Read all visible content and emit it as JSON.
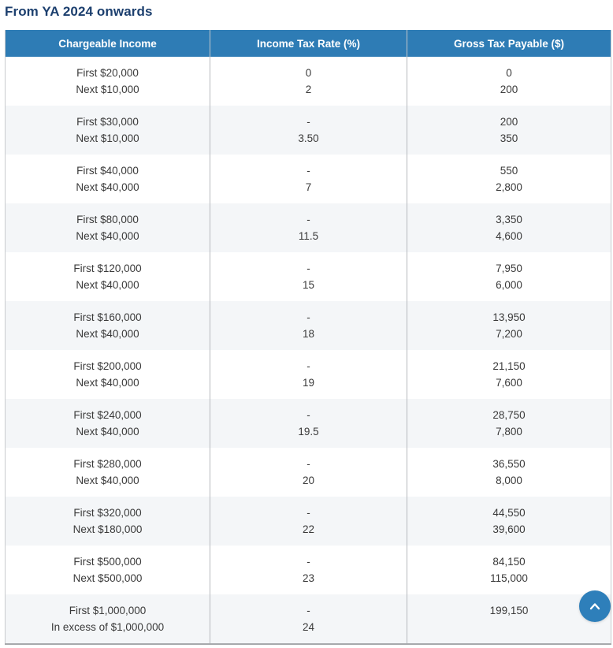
{
  "page": {
    "title": "From YA 2024 onwards"
  },
  "colors": {
    "title_text": "#1c3f6e",
    "header_background": "#2e7cb5",
    "header_text": "#ffffff",
    "alt_row_background": "#f4f6f8",
    "body_text": "#3a3a3a",
    "back_to_top_background": "#2e7fba"
  },
  "table": {
    "columns": [
      "Chargeable Income",
      "Income Tax Rate (%)",
      "Gross Tax Payable ($)"
    ],
    "rows": [
      {
        "income": [
          "First $20,000",
          "Next $10,000"
        ],
        "rate": [
          "0",
          "2"
        ],
        "gross": [
          "0",
          "200"
        ]
      },
      {
        "income": [
          "First $30,000",
          "Next $10,000"
        ],
        "rate": [
          "-",
          "3.50"
        ],
        "gross": [
          "200",
          "350"
        ]
      },
      {
        "income": [
          "First $40,000",
          "Next $40,000"
        ],
        "rate": [
          "-",
          "7"
        ],
        "gross": [
          "550",
          "2,800"
        ]
      },
      {
        "income": [
          "First $80,000",
          "Next $40,000"
        ],
        "rate": [
          "-",
          "11.5"
        ],
        "gross": [
          "3,350",
          "4,600"
        ]
      },
      {
        "income": [
          "First $120,000",
          "Next $40,000"
        ],
        "rate": [
          "-",
          "15"
        ],
        "gross": [
          "7,950",
          "6,000"
        ]
      },
      {
        "income": [
          "First $160,000",
          "Next $40,000"
        ],
        "rate": [
          "-",
          "18"
        ],
        "gross": [
          "13,950",
          "7,200"
        ]
      },
      {
        "income": [
          "First $200,000",
          "Next $40,000"
        ],
        "rate": [
          "-",
          "19"
        ],
        "gross": [
          "21,150",
          "7,600"
        ]
      },
      {
        "income": [
          "First $240,000",
          "Next $40,000"
        ],
        "rate": [
          "-",
          "19.5"
        ],
        "gross": [
          "28,750",
          "7,800"
        ]
      },
      {
        "income": [
          "First $280,000",
          "Next $40,000"
        ],
        "rate": [
          "-",
          "20"
        ],
        "gross": [
          "36,550",
          "8,000"
        ]
      },
      {
        "income": [
          "First $320,000",
          "Next $180,000"
        ],
        "rate": [
          "-",
          "22"
        ],
        "gross": [
          "44,550",
          "39,600"
        ]
      },
      {
        "income": [
          "First $500,000",
          "Next $500,000"
        ],
        "rate": [
          "-",
          "23"
        ],
        "gross": [
          "84,150",
          "115,000"
        ]
      },
      {
        "income": [
          "First $1,000,000",
          "In excess of $1,000,000"
        ],
        "rate": [
          "-",
          "24"
        ],
        "gross": [
          "199,150",
          ""
        ]
      }
    ]
  },
  "back_to_top": {
    "icon": "chevron-up"
  }
}
